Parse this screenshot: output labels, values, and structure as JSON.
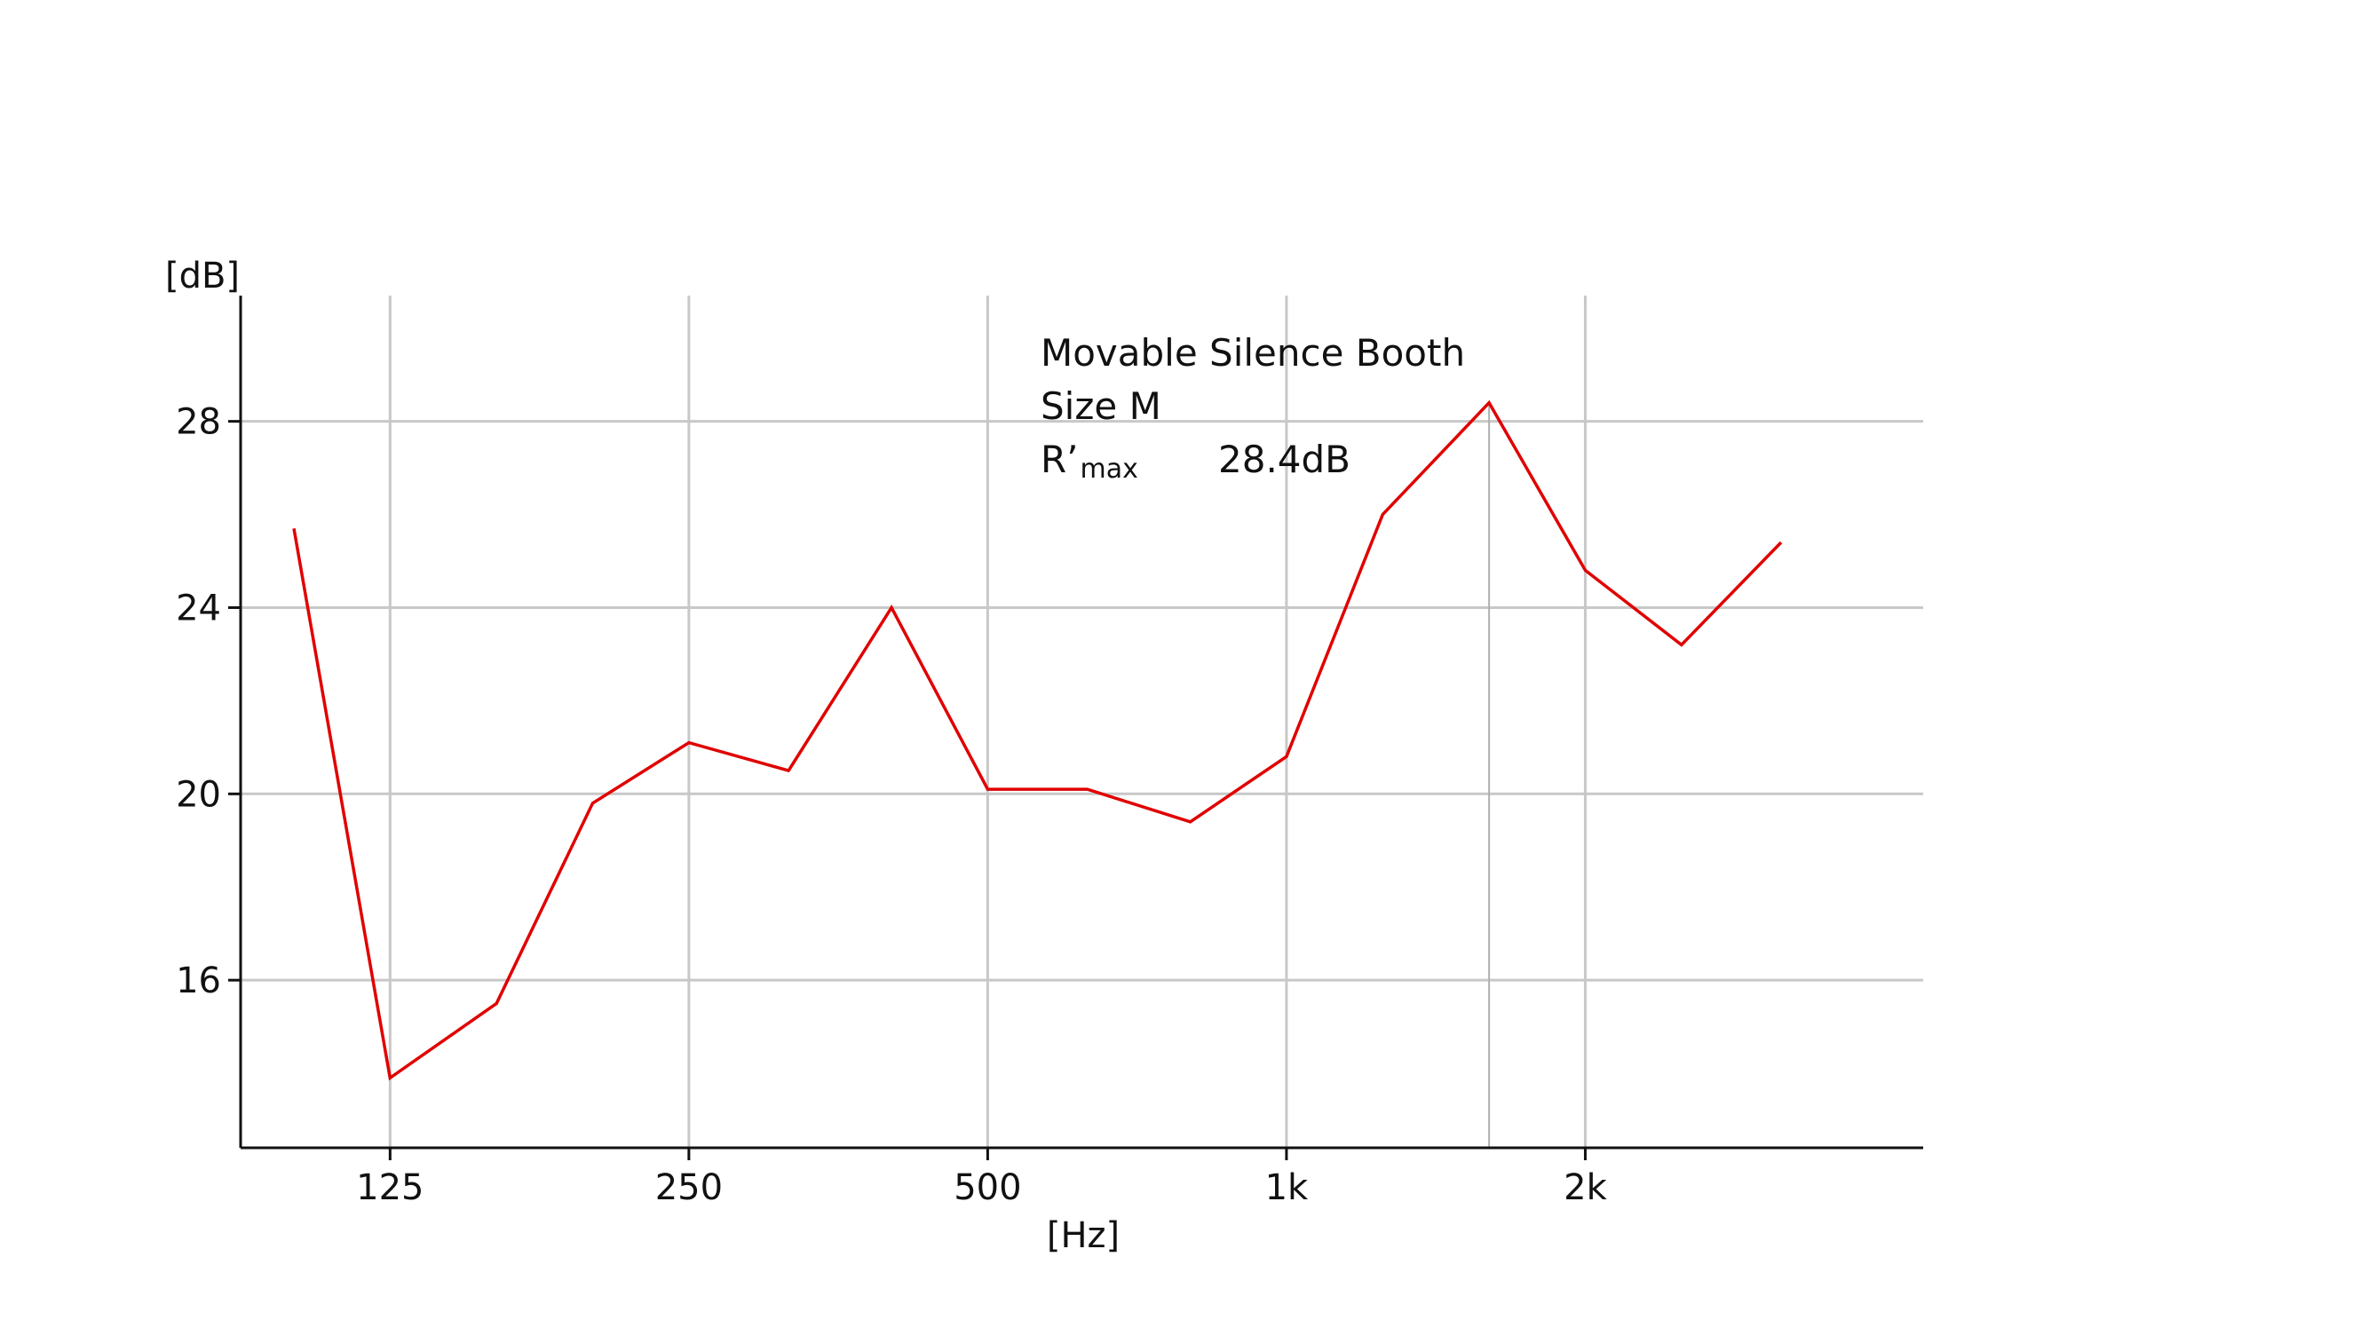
{
  "chart_data": {
    "type": "line",
    "ylabel": "[dB]",
    "xlabel": "[Hz]",
    "x_scale": "log",
    "xlim": [
      100,
      3150
    ],
    "ylim": [
      12.4,
      30.7
    ],
    "x_ticks": [
      {
        "value": 125,
        "label": "125"
      },
      {
        "value": 250,
        "label": "250"
      },
      {
        "value": 500,
        "label": "500"
      },
      {
        "value": 1000,
        "label": "1k"
      },
      {
        "value": 2000,
        "label": "2k"
      }
    ],
    "y_ticks": [
      {
        "value": 16,
        "label": "16"
      },
      {
        "value": 20,
        "label": "20"
      },
      {
        "value": 24,
        "label": "24"
      },
      {
        "value": 28,
        "label": "28"
      }
    ],
    "grid": true,
    "series": [
      {
        "color": "#e00000",
        "x": [
          100,
          125,
          160,
          200,
          250,
          315,
          400,
          500,
          630,
          800,
          1000,
          1250,
          1600,
          2000,
          2500,
          3150
        ],
        "y": [
          25.7,
          13.9,
          15.5,
          19.8,
          21.1,
          20.5,
          24.0,
          20.1,
          20.1,
          19.4,
          20.8,
          26.0,
          28.4,
          24.8,
          23.2,
          25.4
        ]
      }
    ],
    "annotation": {
      "line1": "Movable Silence Booth",
      "line2": "Size M",
      "label_main": "R’",
      "label_sub": "max",
      "value": "28.4dB"
    }
  }
}
